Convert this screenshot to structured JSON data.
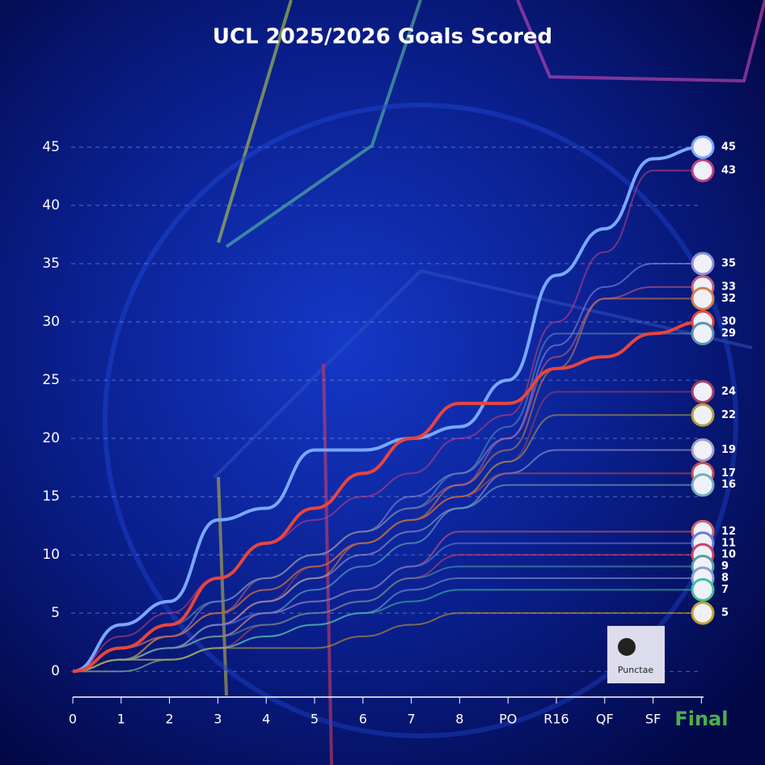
{
  "chart_data": {
    "type": "line",
    "title": "UCL 2025/2026 Goals Scored",
    "categories": [
      "0",
      "1",
      "2",
      "3",
      "4",
      "5",
      "6",
      "7",
      "8",
      "PO",
      "R16",
      "QF",
      "SF",
      "Final"
    ],
    "ylim": [
      -2,
      50
    ],
    "yticks": [
      0,
      5,
      10,
      15,
      20,
      25,
      30,
      35,
      40,
      45
    ],
    "grid": true,
    "logo_text": "Punctae",
    "series": [
      {
        "color": "#7aa7ff",
        "width": 4,
        "values": [
          0,
          4,
          6,
          13,
          14,
          19,
          19,
          20,
          21,
          25,
          34,
          38,
          44,
          45
        ]
      },
      {
        "color": "#c04080",
        "width": 2,
        "values": [
          0,
          3,
          5,
          8,
          11,
          13,
          15,
          17,
          20,
          22,
          30,
          36,
          43,
          43
        ]
      },
      {
        "color": "#8c8cd8",
        "width": 2,
        "values": [
          0,
          2,
          3,
          6,
          8,
          10,
          12,
          15,
          17,
          20,
          28,
          33,
          35,
          35
        ]
      },
      {
        "color": "#c06080",
        "width": 2,
        "values": [
          0,
          1,
          3,
          5,
          8,
          10,
          12,
          14,
          16,
          20,
          27,
          32,
          33,
          33
        ]
      },
      {
        "color": "#d08050",
        "width": 2,
        "values": [
          0,
          1,
          2,
          4,
          6,
          8,
          11,
          13,
          16,
          19,
          26,
          32,
          32,
          32
        ]
      },
      {
        "color": "#e8453c",
        "width": 4,
        "values": [
          0,
          2,
          4,
          8,
          11,
          14,
          17,
          20,
          23,
          23,
          26,
          27,
          29,
          30
        ]
      },
      {
        "color": "#6090b0",
        "width": 2,
        "values": [
          0,
          2,
          4,
          6,
          8,
          10,
          12,
          14,
          17,
          21,
          29,
          29,
          29,
          29
        ]
      },
      {
        "color": "#a04060",
        "width": 2,
        "values": [
          0,
          1,
          2,
          4,
          6,
          9,
          11,
          13,
          15,
          18,
          24,
          24,
          24,
          24
        ]
      },
      {
        "color": "#b0a040",
        "width": 2,
        "values": [
          0,
          1,
          3,
          5,
          7,
          9,
          11,
          13,
          15,
          18,
          22,
          22,
          22,
          22
        ]
      },
      {
        "color": "#a0a0c8",
        "width": 2,
        "values": [
          0,
          1,
          2,
          4,
          6,
          8,
          10,
          12,
          14,
          17,
          19,
          19,
          19,
          19
        ]
      },
      {
        "color": "#c05050",
        "width": 2,
        "values": [
          0,
          2,
          3,
          5,
          7,
          9,
          11,
          13,
          15,
          17,
          17,
          17,
          17,
          17
        ]
      },
      {
        "color": "#70b0c0",
        "width": 2,
        "values": [
          0,
          1,
          2,
          3,
          5,
          7,
          9,
          11,
          14,
          16,
          16,
          16,
          16,
          16
        ]
      },
      {
        "color": "#d06070",
        "width": 2,
        "values": [
          0,
          1,
          2,
          3,
          5,
          6,
          7,
          9,
          12,
          12,
          12,
          12,
          12,
          12
        ]
      },
      {
        "color": "#6080e0",
        "width": 2,
        "values": [
          0,
          1,
          2,
          4,
          5,
          6,
          7,
          9,
          11,
          11,
          11,
          11,
          11,
          11
        ]
      },
      {
        "color": "#d04060",
        "width": 2,
        "values": [
          0,
          0,
          1,
          2,
          4,
          5,
          6,
          8,
          10,
          10,
          10,
          10,
          10,
          10
        ]
      },
      {
        "color": "#50a0a0",
        "width": 2,
        "values": [
          0,
          1,
          2,
          3,
          4,
          5,
          6,
          8,
          9,
          9,
          9,
          9,
          9,
          9
        ]
      },
      {
        "color": "#80a0d0",
        "width": 2,
        "values": [
          0,
          1,
          1,
          2,
          3,
          4,
          5,
          7,
          8,
          8,
          8,
          8,
          8,
          8
        ]
      },
      {
        "color": "#40c0a0",
        "width": 2,
        "values": [
          0,
          0,
          1,
          2,
          3,
          4,
          5,
          6,
          7,
          7,
          7,
          7,
          7,
          7
        ]
      },
      {
        "color": "#c0a030",
        "width": 2,
        "values": [
          0,
          1,
          1,
          2,
          2,
          2,
          3,
          4,
          5,
          5,
          5,
          5,
          5,
          5
        ]
      }
    ]
  }
}
